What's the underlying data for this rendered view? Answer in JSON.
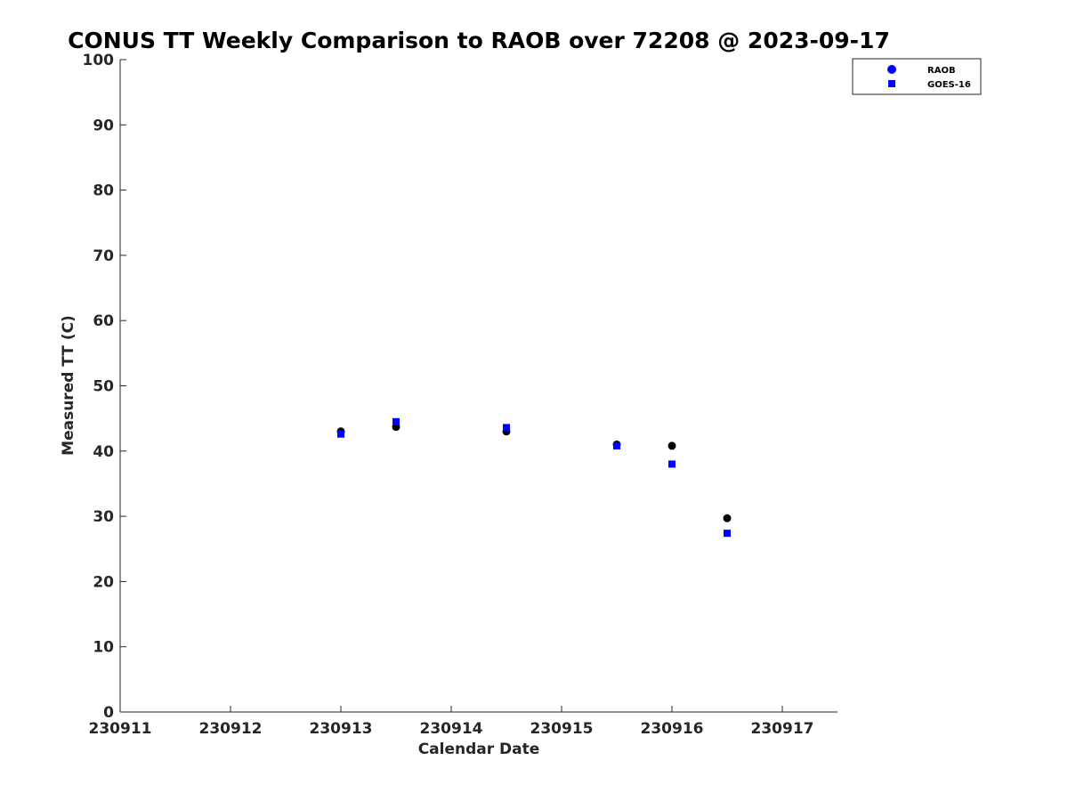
{
  "chart_data": {
    "type": "scatter",
    "title": "CONUS TT Weekly Comparison to RAOB over 72208 @ 2023-09-17",
    "xlabel": "Calendar Date",
    "ylabel": "Measured TT (C)",
    "xlim": [
      230911,
      230917.5
    ],
    "ylim": [
      0,
      100
    ],
    "xticks": [
      230911,
      230912,
      230913,
      230914,
      230915,
      230916,
      230917
    ],
    "xtick_labels": [
      "230911",
      "230912",
      "230913",
      "230914",
      "230915",
      "230916",
      "230917"
    ],
    "yticks": [
      0,
      10,
      20,
      30,
      40,
      50,
      60,
      70,
      80,
      90,
      100
    ],
    "ytick_labels": [
      "0",
      "10",
      "20",
      "30",
      "40",
      "50",
      "60",
      "70",
      "80",
      "90",
      "100"
    ],
    "grid": false,
    "legend_position": "top-right",
    "series": [
      {
        "name": "RAOB",
        "marker": "circle",
        "legend_color": "#0000ff",
        "point_color": "#000000",
        "x": [
          230913,
          230913.5,
          230914.5,
          230915.5,
          230916,
          230916.5
        ],
        "y": [
          43.0,
          43.7,
          43.0,
          41.0,
          40.8,
          29.7
        ]
      },
      {
        "name": "GOES-16",
        "marker": "square",
        "legend_color": "#0000ff",
        "point_color": "#0000ff",
        "x": [
          230913,
          230913.5,
          230914.5,
          230915.5,
          230916,
          230916.5
        ],
        "y": [
          42.6,
          44.5,
          43.6,
          40.8,
          38.0,
          27.4
        ]
      }
    ]
  }
}
